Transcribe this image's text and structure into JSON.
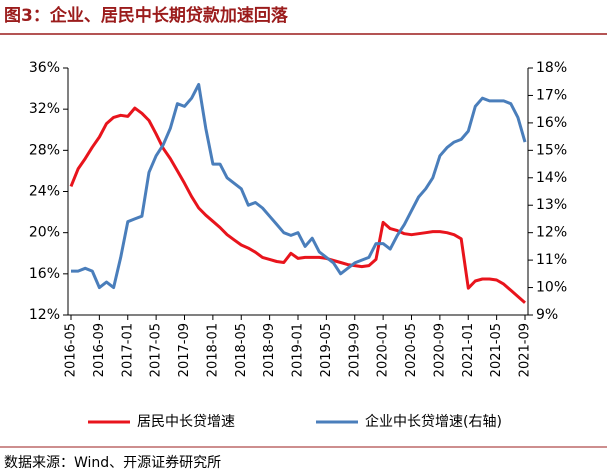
{
  "chart_data": {
    "type": "line",
    "title": "图3：企业、居民中长期贷款加速回落",
    "source": "数据来源：Wind、开源证券研究所",
    "categories": [
      "2016-05",
      null,
      null,
      null,
      "2016-09",
      null,
      null,
      null,
      "2017-01",
      null,
      null,
      null,
      "2017-05",
      null,
      null,
      null,
      "2017-09",
      null,
      null,
      null,
      "2018-01",
      null,
      null,
      null,
      "2018-05",
      null,
      null,
      null,
      "2018-09",
      null,
      null,
      null,
      "2019-01",
      null,
      null,
      null,
      "2019-05",
      null,
      null,
      null,
      "2019-09",
      null,
      null,
      null,
      "2020-01",
      null,
      null,
      null,
      "2020-05",
      null,
      null,
      null,
      "2020-09",
      null,
      null,
      null,
      "2021-01",
      null,
      null,
      null,
      "2021-05",
      null,
      null,
      null,
      "2021-09"
    ],
    "series": [
      {
        "name": "居民中长贷增速",
        "color": "#e8141c",
        "axis": "y",
        "values": [
          24.5,
          26.2,
          27.2,
          28.3,
          29.3,
          30.6,
          31.2,
          31.4,
          31.3,
          32.1,
          31.6,
          30.9,
          29.6,
          28.2,
          27.2,
          26.0,
          24.8,
          23.5,
          22.4,
          21.7,
          21.1,
          20.5,
          19.8,
          19.3,
          18.8,
          18.5,
          18.1,
          17.6,
          17.4,
          17.2,
          17.1,
          18.0,
          17.5,
          17.6,
          17.6,
          17.6,
          17.5,
          17.3,
          17.1,
          16.9,
          16.8,
          16.7,
          16.8,
          17.4,
          21.0,
          20.4,
          20.2,
          19.9,
          19.8,
          19.9,
          20.0,
          20.1,
          20.1,
          20.0,
          19.8,
          19.4,
          14.6,
          15.3,
          15.5,
          15.5,
          15.4,
          15.0,
          14.4,
          13.8,
          13.2
        ]
      },
      {
        "name": "企业中长贷增速(右轴)",
        "color": "#4a7ebb",
        "axis": "y2",
        "values": [
          10.6,
          10.6,
          10.7,
          10.6,
          10.0,
          10.2,
          10.0,
          11.1,
          12.4,
          12.5,
          12.6,
          14.2,
          14.8,
          15.2,
          15.8,
          16.7,
          16.6,
          16.9,
          17.4,
          15.8,
          14.5,
          14.5,
          14.0,
          13.8,
          13.6,
          13.0,
          13.1,
          12.9,
          12.6,
          12.3,
          12.0,
          11.9,
          12.0,
          11.5,
          11.8,
          11.3,
          11.1,
          10.9,
          10.5,
          10.7,
          10.9,
          11.0,
          11.1,
          11.6,
          11.6,
          11.4,
          11.9,
          12.3,
          12.8,
          13.3,
          13.6,
          14.0,
          14.8,
          15.1,
          15.3,
          15.4,
          15.7,
          16.6,
          16.9,
          16.8,
          16.8,
          16.8,
          16.7,
          16.2,
          15.3
        ]
      }
    ],
    "ylim": [
      12,
      36
    ],
    "yticks": [
      {
        "value": 12,
        "label": "12%"
      },
      {
        "value": 16,
        "label": "16%"
      },
      {
        "value": 20,
        "label": "20%"
      },
      {
        "value": 24,
        "label": "24%"
      },
      {
        "value": 28,
        "label": "28%"
      },
      {
        "value": 32,
        "label": "32%"
      },
      {
        "value": 36,
        "label": "36%"
      }
    ],
    "y2lim": [
      9,
      18
    ],
    "y2ticks": [
      {
        "value": 9,
        "label": "9%"
      },
      {
        "value": 10,
        "label": "10%"
      },
      {
        "value": 11,
        "label": "11%"
      },
      {
        "value": 12,
        "label": "12%"
      },
      {
        "value": 13,
        "label": "13%"
      },
      {
        "value": 14,
        "label": "14%"
      },
      {
        "value": 15,
        "label": "15%"
      },
      {
        "value": 16,
        "label": "16%"
      },
      {
        "value": 17,
        "label": "17%"
      },
      {
        "value": 18,
        "label": "18%"
      }
    ]
  }
}
